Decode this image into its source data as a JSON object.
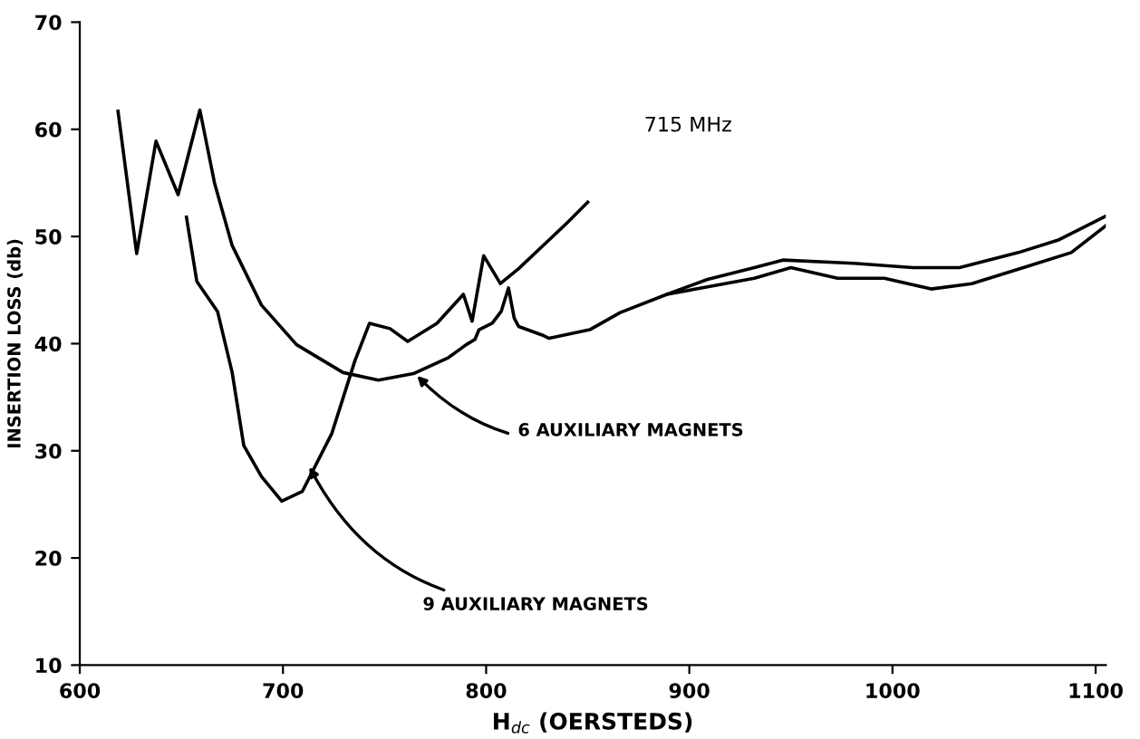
{
  "chart_data": {
    "type": "line",
    "xlabel": "H$_{dc}$ (OERSTEDS)",
    "ylabel": "INSERTION LOSS (db)",
    "xlim": [
      600,
      1105
    ],
    "xticks": [
      600,
      700,
      800,
      900,
      1000,
      1100
    ],
    "ylim": [
      10,
      70
    ],
    "yticks": [
      10,
      20,
      30,
      40,
      50,
      60,
      70
    ],
    "grid": false,
    "marker": "none",
    "line_style": "solid",
    "series": [
      {
        "color": "#000000",
        "x": [
          618.8,
          628,
          637.5,
          648.4,
          659.1,
          666.3,
          674.9,
          689.4,
          706.7,
          729.6,
          747,
          764.2,
          781.5,
          790.2,
          794.5,
          796.5,
          803,
          807.4,
          811,
          813.8,
          816,
          827.6,
          831,
          851,
          866,
          889,
          909,
          932,
          950,
          973,
          996,
          1019,
          1039,
          1068,
          1088,
          1105
        ],
        "values": [
          61.7,
          48.4,
          58.9,
          53.9,
          61.8,
          55,
          49.2,
          43.6,
          39.9,
          37.3,
          36.6,
          37.2,
          38.7,
          39.9,
          40.4,
          41.3,
          41.9,
          43,
          45.2,
          42.4,
          41.6,
          40.8,
          40.5,
          41.3,
          42.9,
          44.6,
          45.3,
          46.1,
          47.1,
          46.1,
          46.1,
          45.1,
          45.6,
          47.3,
          48.5,
          51
        ]
      },
      {
        "color": "#000000",
        "x": [
          889,
          909,
          932,
          946,
          981,
          1010,
          1033,
          1062,
          1082,
          1105
        ],
        "values": [
          44.6,
          46.0,
          47.1,
          47.8,
          47.5,
          47.1,
          47.1,
          48.5,
          49.7,
          51.9
        ]
      },
      {
        "color": "#000000",
        "x": [
          652.5,
          657.6,
          667.8,
          675,
          680.7,
          689.4,
          699.4,
          709.5,
          724,
          735.4,
          742.6,
          752.7,
          761.4,
          775.8,
          788.8,
          793.1,
          798.8,
          807,
          816,
          830,
          840,
          850
        ],
        "values": [
          51.8,
          45.8,
          43.0,
          37.3,
          30.5,
          27.6,
          25.3,
          26.2,
          31.6,
          38.4,
          41.9,
          41.4,
          40.2,
          41.9,
          44.6,
          42.1,
          48.2,
          45.6,
          47.0,
          49.5,
          51.3,
          53.2
        ]
      }
    ],
    "annotations": [
      "715 MHz",
      {
        "text": "6 AUXILIARY MAGNETS",
        "x": 766,
        "y": 37
      },
      {
        "text": "9 AUXILIARY MAGNETS",
        "x": 713,
        "y": 28.5
      }
    ]
  }
}
